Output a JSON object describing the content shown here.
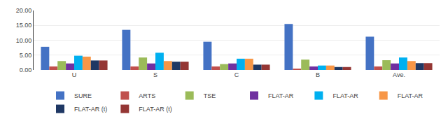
{
  "chart_data": {
    "type": "bar",
    "categories": [
      "U",
      "S",
      "C",
      "B",
      "Ave."
    ],
    "series": [
      {
        "name": "SURE",
        "color": "#4472c4",
        "values": [
          7.8,
          13.5,
          9.5,
          15.5,
          11.2
        ]
      },
      {
        "name": "ARTS",
        "color": "#c0504d",
        "values": [
          1.2,
          1.2,
          1.2,
          0.4,
          1.2
        ]
      },
      {
        "name": "TSE",
        "color": "#9bbb59",
        "values": [
          3.0,
          4.2,
          2.0,
          3.5,
          3.3
        ]
      },
      {
        "name": "FLAT-AR",
        "color": "#7030a0",
        "values": [
          2.2,
          2.2,
          2.2,
          1.2,
          2.2
        ]
      },
      {
        "name": "FLAT-AR",
        "color": "#00b0f0",
        "values": [
          4.8,
          5.8,
          3.8,
          1.5,
          4.2
        ]
      },
      {
        "name": "FLAT-AR",
        "color": "#f79646",
        "values": [
          4.5,
          3.0,
          3.8,
          1.5,
          3.0
        ]
      },
      {
        "name": "FLAT-AR (t)",
        "color": "#1f3864",
        "values": [
          3.2,
          2.8,
          1.8,
          1.0,
          2.3
        ]
      },
      {
        "name": "FLAT-AR (t)",
        "color": "#943634",
        "values": [
          3.2,
          2.8,
          1.8,
          1.0,
          2.3
        ]
      }
    ],
    "ylim": [
      0,
      20
    ],
    "yticks": [
      {
        "value": 0,
        "label": "0.00"
      },
      {
        "value": 5,
        "label": "5.00"
      },
      {
        "value": 10,
        "label": "10.00"
      },
      {
        "value": 15,
        "label": "15.00"
      },
      {
        "value": 20,
        "label": "20.00"
      }
    ],
    "grid": true,
    "legend": "bottom"
  }
}
